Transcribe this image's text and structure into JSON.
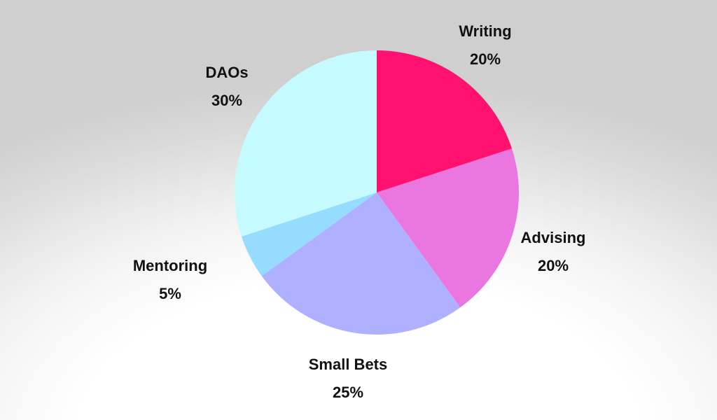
{
  "chart_data": {
    "type": "pie",
    "title": "",
    "legend": "none",
    "start": "top, clockwise",
    "slices": [
      {
        "label": "Writing",
        "value": 20,
        "display": "20%",
        "color": "#ff1170"
      },
      {
        "label": "Advising",
        "value": 20,
        "display": "20%",
        "color": "#ea76df"
      },
      {
        "label": "Small Bets",
        "value": 25,
        "display": "25%",
        "color": "#afb0ff"
      },
      {
        "label": "Mentoring",
        "value": 5,
        "display": "5%",
        "color": "#96dcfe"
      },
      {
        "label": "DAOs",
        "value": 30,
        "display": "30%",
        "color": "#c5fafe"
      }
    ]
  }
}
